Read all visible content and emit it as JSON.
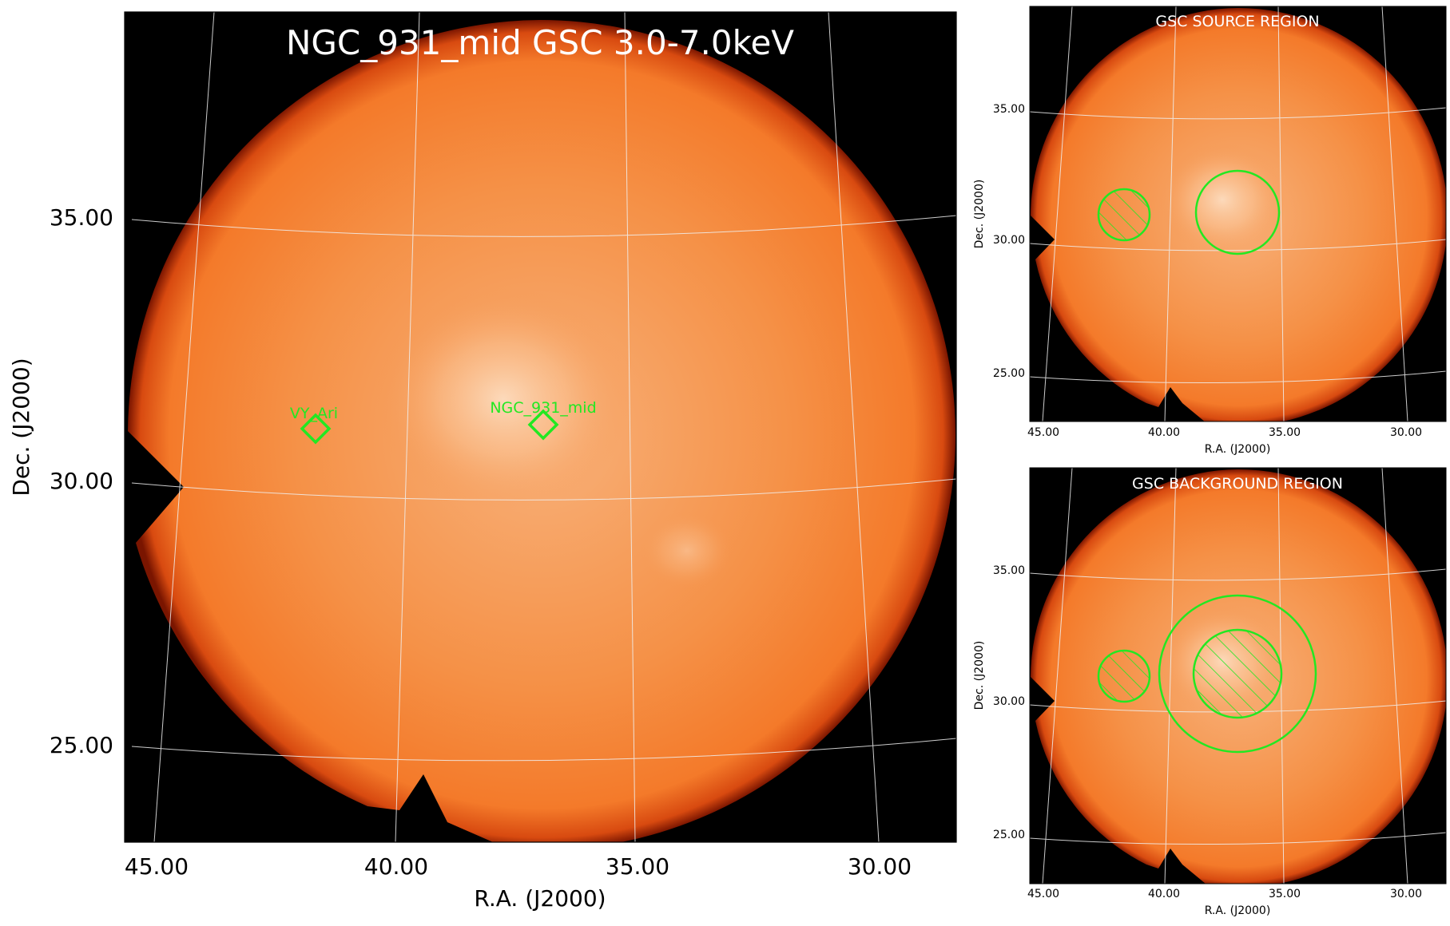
{
  "colors": {
    "sky_core": "#f7b27a",
    "sky_mid": "#f58a3c",
    "sky_edge": "#b02a05",
    "frame_bg": "#000000",
    "grid": "#f0f0f0",
    "marker": "#22e822",
    "title_text": "#ffffff",
    "axis_text": "#000000"
  },
  "main": {
    "title": "NGC_931_mid GSC 3.0-7.0keV",
    "xlabel": "R.A. (J2000)",
    "ylabel": "Dec. (J2000)",
    "xticks": [
      "45.00",
      "40.00",
      "35.00",
      "30.00"
    ],
    "yticks": [
      "35.00",
      "30.00",
      "25.00"
    ]
  },
  "source_panel": {
    "title": "GSC SOURCE REGION",
    "xlabel": "R.A. (J2000)",
    "ylabel": "Dec. (J2000)",
    "xticks": [
      "45.00",
      "40.00",
      "35.00",
      "30.00"
    ],
    "yticks": [
      "35.00",
      "30.00",
      "25.00"
    ]
  },
  "background_panel": {
    "title": "GSC BACKGROUND REGION",
    "xlabel": "R.A. (J2000)",
    "ylabel": "Dec. (J2000)",
    "xticks": [
      "45.00",
      "40.00",
      "35.00",
      "30.00"
    ],
    "yticks": [
      "35.00",
      "30.00",
      "25.00"
    ]
  },
  "chart_data": [
    {
      "type": "heatmap",
      "title": "NGC_931_mid GSC 3.0-7.0keV",
      "xlabel": "R.A. (J2000)",
      "ylabel": "Dec. (J2000)",
      "x_ticks": [
        45.0,
        40.0,
        35.0,
        30.0
      ],
      "y_ticks": [
        35.0,
        30.0,
        25.0
      ],
      "x_direction": "decreasing",
      "sources": [
        {
          "name": "VY_Ari",
          "ra": 41.6,
          "dec": 30.9,
          "marker": "diamond"
        },
        {
          "name": "NGC_931_mid",
          "ra": 36.9,
          "dec": 31.0,
          "marker": "diamond"
        }
      ],
      "grid": true,
      "colormap": "hot"
    },
    {
      "type": "heatmap",
      "title": "GSC SOURCE REGION",
      "xlabel": "R.A. (J2000)",
      "ylabel": "Dec. (J2000)",
      "x_ticks": [
        45.0,
        40.0,
        35.0,
        30.0
      ],
      "y_ticks": [
        35.0,
        30.0,
        25.0
      ],
      "regions": [
        {
          "shape": "circle",
          "ra": 36.9,
          "dec": 31.0,
          "radius_deg": 1.7,
          "kind": "source"
        },
        {
          "shape": "circle",
          "ra": 41.6,
          "dec": 30.9,
          "radius_deg": 1.0,
          "kind": "excluded",
          "hatched": true
        }
      ],
      "grid": true
    },
    {
      "type": "heatmap",
      "title": "GSC BACKGROUND REGION",
      "xlabel": "R.A. (J2000)",
      "ylabel": "Dec. (J2000)",
      "x_ticks": [
        45.0,
        40.0,
        35.0,
        30.0
      ],
      "y_ticks": [
        35.0,
        30.0,
        25.0
      ],
      "regions": [
        {
          "shape": "circle",
          "ra": 36.9,
          "dec": 31.0,
          "radius_deg": 3.0,
          "kind": "background"
        },
        {
          "shape": "circle",
          "ra": 36.9,
          "dec": 31.0,
          "radius_deg": 1.7,
          "kind": "excluded",
          "hatched": true
        },
        {
          "shape": "circle",
          "ra": 41.6,
          "dec": 30.9,
          "radius_deg": 1.0,
          "kind": "excluded",
          "hatched": true
        }
      ],
      "grid": true
    }
  ]
}
